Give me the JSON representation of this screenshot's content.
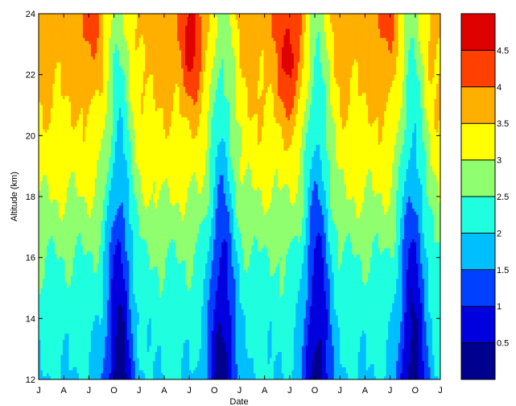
{
  "chart_data": {
    "type": "heatmap",
    "title": "",
    "xlabel": "Date",
    "ylabel": "Altitude (km)",
    "x_tick_labels": [
      "J",
      "A",
      "J",
      "O",
      "J",
      "A",
      "J",
      "O",
      "J",
      "A",
      "J",
      "O",
      "J",
      "A",
      "J",
      "O",
      "J"
    ],
    "y_ticks": [
      12,
      14,
      16,
      18,
      20,
      22,
      24
    ],
    "ylim": [
      12,
      24
    ],
    "colorbar": {
      "levels": [
        0,
        0.5,
        1,
        1.5,
        2,
        2.5,
        3,
        3.5,
        4,
        4.5,
        5
      ],
      "tick_labels": [
        "0.5",
        "1",
        "1.5",
        "2",
        "2.5",
        "3",
        "3.5",
        "4",
        "4.5"
      ],
      "colors": [
        "#00008f",
        "#0000df",
        "#0040ff",
        "#00bfff",
        "#1fffdf",
        "#8fff6f",
        "#ffff00",
        "#ffaf00",
        "#ff4000",
        "#df0000"
      ]
    },
    "field_profile": {
      "altitude_km": [
        12,
        13,
        14,
        15,
        16,
        17,
        18,
        19,
        20,
        21,
        22,
        23,
        24
      ],
      "between_minima": [
        2.0,
        2.1,
        2.2,
        2.35,
        2.5,
        2.75,
        3.0,
        3.2,
        3.35,
        3.5,
        3.6,
        3.7,
        3.8
      ],
      "minimum_depth": [
        1.9,
        1.8,
        1.75,
        1.7,
        1.65,
        1.6,
        1.55,
        1.45,
        1.35,
        1.3,
        1.2,
        1.1,
        1.0
      ]
    },
    "minima_tick_index": [
      3.2,
      7.3,
      11.1,
      14.9
    ],
    "maxima": [
      {
        "tick_index": 2.0,
        "altitude_km": 23.5,
        "value": 4.0
      },
      {
        "tick_index": 6.1,
        "altitude_km": 23.0,
        "value": 4.6
      },
      {
        "tick_index": 10.0,
        "altitude_km": 22.5,
        "value": 4.7
      },
      {
        "tick_index": 13.8,
        "altitude_km": 23.5,
        "value": 4.0
      }
    ]
  }
}
